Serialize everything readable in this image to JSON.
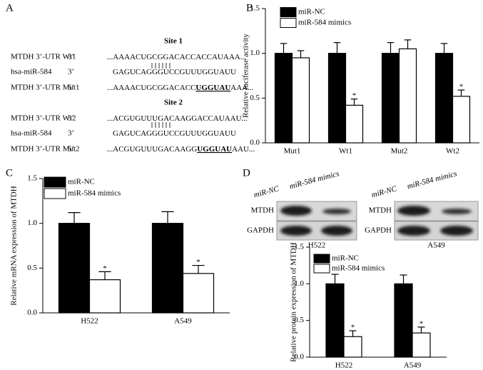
{
  "panel_a": {
    "label": "A",
    "sites": [
      {
        "title": "Site 1",
        "rows": [
          {
            "name": "MTDH 3’-UTR Wt1",
            "end": "5’",
            "sequence": [
              "...AAAACUGCGGACACCACCAUAAA..."
            ]
          },
          {
            "name": "hsa-miR-584",
            "end": "3’",
            "sequence": [
              "GAGUCAGGGUCCGUUUGGUAUU"
            ]
          },
          {
            "name": "MTDH 3’-UTR Mut1",
            "end": "5’",
            "sequence": [
              "...AAAACUGCGGACACC",
              "UGGUAU",
              "AAA..."
            ]
          }
        ]
      },
      {
        "title": "Site 2",
        "rows": [
          {
            "name": "MTDH 3’-UTR Wt2",
            "end": "5’",
            "sequence": [
              "...ACGUGUUUGACAAGGACCAUAAU..."
            ]
          },
          {
            "name": "hsa-miR-584",
            "end": "3’",
            "sequence": [
              "GAGUCAGGGUCCGUUUGGUAUU"
            ]
          },
          {
            "name": "MTDH 3’-UTR Mut2",
            "end": "5’",
            "sequence": [
              "...ACGUGUUUGACAAGG",
              "UGGUAU",
              "AAU..."
            ]
          }
        ]
      }
    ]
  },
  "blots": [
    {
      "cell_line": "H522",
      "lanes": [
        "miR-NC",
        "miR-584 mimics"
      ],
      "proteins": [
        "MTDH",
        "GAPDH"
      ]
    },
    {
      "cell_line": "A549",
      "lanes": [
        "miR-NC",
        "miR-584 mimics"
      ],
      "proteins": [
        "MTDH",
        "GAPDH"
      ]
    }
  ],
  "chart_data": [
    {
      "type": "bar",
      "panel_label": "B",
      "ylabel": "Relative luciferase activity",
      "legend": "top-left",
      "categories": [
        "Mut1",
        "Wt1",
        "Mut2",
        "Wt2"
      ],
      "series": [
        {
          "name": "miR-NC",
          "color": "#000000",
          "values": [
            1.0,
            1.0,
            1.0,
            1.0
          ],
          "errors": [
            0.11,
            0.12,
            0.12,
            0.11
          ]
        },
        {
          "name": "miR-584 mimics",
          "color": "#ffffff",
          "values": [
            0.95,
            0.42,
            1.05,
            0.52
          ],
          "errors": [
            0.08,
            0.07,
            0.1,
            0.07
          ],
          "significance": [
            null,
            "*",
            null,
            "*"
          ]
        }
      ],
      "ylim": [
        0,
        1.5
      ],
      "yticks": [
        {
          "value": 0,
          "label": "0.0"
        },
        0.5,
        {
          "value": 1,
          "label": "1.0"
        },
        1.5
      ]
    },
    {
      "type": "bar",
      "panel_label": "C",
      "ylabel": "Relative mRNA expression of MTDH",
      "legend": "top-left",
      "categories": [
        "H522",
        "A549"
      ],
      "series": [
        {
          "name": "miR-NC",
          "color": "#000000",
          "values": [
            1.0,
            1.0
          ],
          "errors": [
            0.12,
            0.13
          ]
        },
        {
          "name": "miR-584 mimics",
          "color": "#ffffff",
          "values": [
            0.37,
            0.44
          ],
          "errors": [
            0.09,
            0.09
          ],
          "significance": [
            "*",
            "*"
          ]
        }
      ],
      "ylim": [
        0,
        1.5
      ],
      "yticks": [
        {
          "value": 0,
          "label": "0.0"
        },
        0.5,
        {
          "value": 1,
          "label": "1.0"
        },
        1.5
      ]
    },
    {
      "type": "bar",
      "panel_label": "D",
      "ylabel": "Relative protein expression of MTDH",
      "legend": "top-left",
      "categories": [
        "H522",
        "A549"
      ],
      "series": [
        {
          "name": "miR-NC",
          "color": "#000000",
          "values": [
            1.0,
            1.0
          ],
          "errors": [
            0.13,
            0.12
          ]
        },
        {
          "name": "miR-584 mimics",
          "color": "#ffffff",
          "values": [
            0.28,
            0.33
          ],
          "errors": [
            0.08,
            0.08
          ],
          "significance": [
            "*",
            "*"
          ]
        }
      ],
      "ylim": [
        0,
        1.5
      ],
      "yticks": [
        {
          "value": 0,
          "label": "0.0"
        },
        0.5,
        {
          "value": 1,
          "label": "1.0"
        },
        1.5
      ]
    }
  ]
}
